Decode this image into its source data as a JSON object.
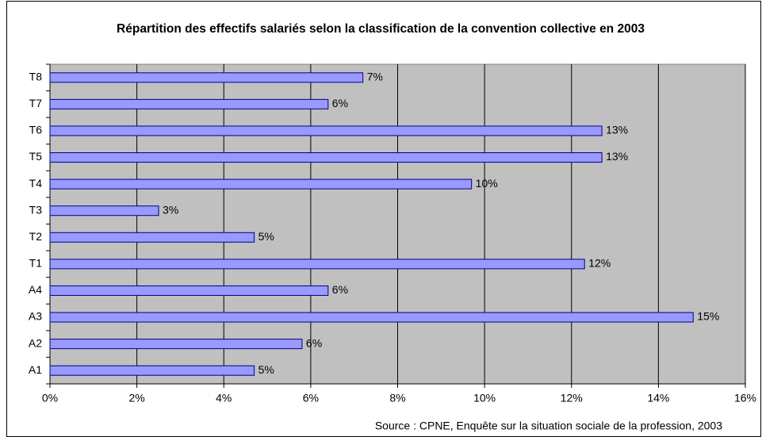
{
  "chart_data": {
    "type": "barh",
    "title": "Répartition des effectifs salariés selon la classification de la convention collective en 2003",
    "source": "Source : CPNE, Enquête sur la situation sociale de la profession, 2003",
    "categories": [
      "A1",
      "A2",
      "A3",
      "A4",
      "T1",
      "T2",
      "T3",
      "T4",
      "T5",
      "T6",
      "T7",
      "T8"
    ],
    "values": [
      4.7,
      5.8,
      14.8,
      6.4,
      12.3,
      4.7,
      2.5,
      9.7,
      12.7,
      12.7,
      6.4,
      7.2
    ],
    "value_labels": [
      "5%",
      "6%",
      "15%",
      "6%",
      "12%",
      "5%",
      "3%",
      "10%",
      "13%",
      "13%",
      "6%",
      "7%"
    ],
    "color": "#9999ff",
    "xlim": [
      0,
      16
    ],
    "xticks": [
      {
        "value": 0,
        "label": "0%"
      },
      {
        "value": 2,
        "label": "2%"
      },
      {
        "value": 4,
        "label": "4%"
      },
      {
        "value": 6,
        "label": "6%"
      },
      {
        "value": 8,
        "label": "8%"
      },
      {
        "value": 10,
        "label": "10%"
      },
      {
        "value": 12,
        "label": "12%"
      },
      {
        "value": 14,
        "label": "14%"
      },
      {
        "value": 16,
        "label": "16%"
      }
    ],
    "grid": true
  }
}
